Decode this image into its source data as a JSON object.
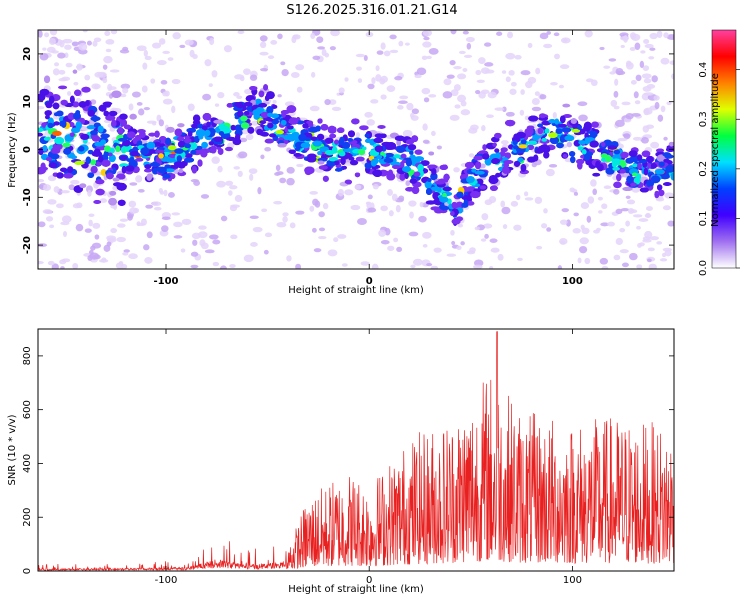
{
  "title": "S126.2025.316.01.21.G14",
  "chart_data": [
    {
      "type": "heatmap",
      "xlabel": "Height of straight line (km)",
      "ylabel": "Frequency (Hz)",
      "xlim": [
        -163,
        150
      ],
      "ylim": [
        -25,
        25
      ],
      "xticks": [
        -100,
        0,
        100
      ],
      "xtick_labels": [
        "-100",
        "0",
        "100"
      ],
      "yticks": [
        -20,
        -10,
        0,
        10,
        20
      ],
      "ytick_labels": [
        "-20",
        "-10",
        "0",
        "10",
        "20"
      ],
      "colorbar": {
        "label": "Normalized spectral amplitude",
        "range": [
          0,
          0.48
        ],
        "ticks": [
          0,
          0.1,
          0.2,
          0.3,
          0.4
        ],
        "tick_labels": [
          "0.0",
          "0.1",
          "0.2",
          "0.3",
          "0.4"
        ],
        "colors": [
          "#ffffff",
          "#a070f0",
          "#4000ff",
          "#0040ff",
          "#00e0ff",
          "#00ff40",
          "#e0ff00",
          "#ff8000",
          "#ff0000",
          "#ff40a0"
        ]
      },
      "ridge": [
        {
          "x": -163,
          "f": 3
        },
        {
          "x": -130,
          "f": 1
        },
        {
          "x": -100,
          "f": -2
        },
        {
          "x": -80,
          "f": 3
        },
        {
          "x": -55,
          "f": 8
        },
        {
          "x": -35,
          "f": 2
        },
        {
          "x": -15,
          "f": -1
        },
        {
          "x": 0,
          "f": 0
        },
        {
          "x": 20,
          "f": -2
        },
        {
          "x": 42,
          "f": -12
        },
        {
          "x": 55,
          "f": -4
        },
        {
          "x": 75,
          "f": 0
        },
        {
          "x": 90,
          "f": 4
        },
        {
          "x": 110,
          "f": 0
        },
        {
          "x": 135,
          "f": -5
        },
        {
          "x": 150,
          "f": -3
        }
      ]
    },
    {
      "type": "line",
      "xlabel": "Height of straight line (km)",
      "ylabel": "SNR (10 * v/v)",
      "xlim": [
        -163,
        150
      ],
      "ylim": [
        0,
        900
      ],
      "xticks": [
        -100,
        0,
        100
      ],
      "xtick_labels": [
        "-100",
        "0",
        "100"
      ],
      "yticks": [
        0,
        200,
        400,
        600,
        800
      ],
      "ytick_labels": [
        "0",
        "200",
        "400",
        "600",
        "800"
      ],
      "line_color": "#e82020",
      "envelope": [
        {
          "x": -163,
          "y": 20
        },
        {
          "x": -120,
          "y": 25
        },
        {
          "x": -90,
          "y": 35
        },
        {
          "x": -75,
          "y": 110
        },
        {
          "x": -60,
          "y": 60
        },
        {
          "x": -40,
          "y": 90
        },
        {
          "x": -30,
          "y": 280
        },
        {
          "x": -10,
          "y": 380
        },
        {
          "x": 0,
          "y": 330
        },
        {
          "x": 20,
          "y": 500
        },
        {
          "x": 40,
          "y": 580
        },
        {
          "x": 60,
          "y": 760
        },
        {
          "x": 75,
          "y": 600
        },
        {
          "x": 100,
          "y": 560
        },
        {
          "x": 120,
          "y": 580
        },
        {
          "x": 150,
          "y": 540
        }
      ],
      "peak": {
        "x": 63,
        "y": 890
      }
    }
  ]
}
